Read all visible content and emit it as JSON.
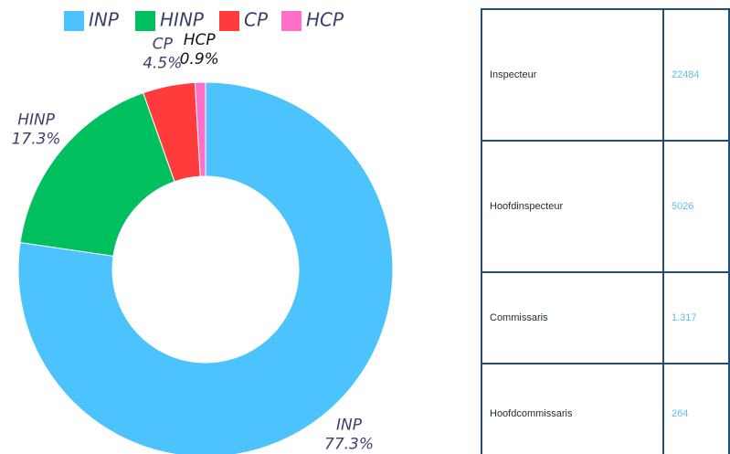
{
  "chart_data": {
    "type": "donut",
    "categories": [
      "INP",
      "HINP",
      "CP",
      "HCP"
    ],
    "values": [
      77.3,
      17.3,
      4.5,
      0.9
    ],
    "value_labels": [
      "77.3%",
      "17.3%",
      "4.5%",
      "0.9%"
    ],
    "colors": [
      "#4cc3fc",
      "#00bf5f",
      "#ff3b3b",
      "#ff6ec7"
    ],
    "legend": "top"
  },
  "table": {
    "rows": [
      [
        "Inspecteur",
        22484
      ],
      [
        "Hoofdinspecteur",
        5026
      ],
      [
        "Commissaris",
        1.317
      ],
      [
        "Hoofdcommissaris",
        264
      ]
    ]
  }
}
